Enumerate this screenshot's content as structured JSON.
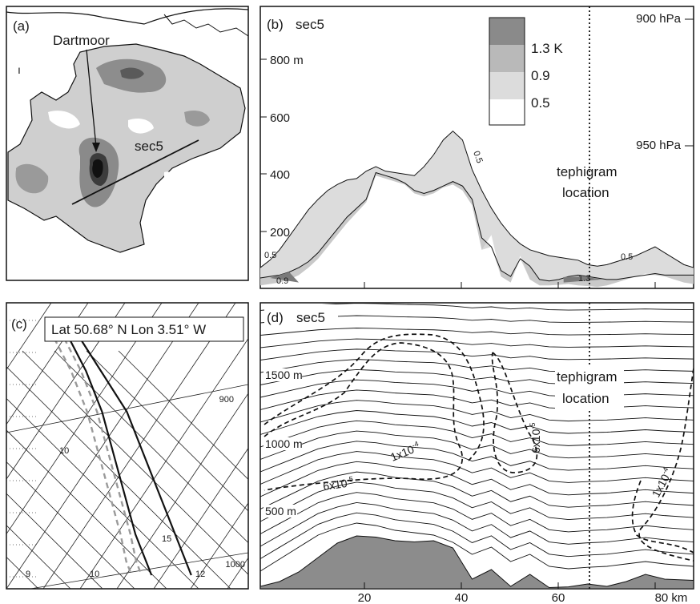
{
  "panel_a": {
    "label": "(a)",
    "place_label": "Dartmoor",
    "section_label": "sec5",
    "shade_color": "#c8c8c8",
    "dark_color": "#6e6e6e",
    "core_color": "#222222"
  },
  "panel_b": {
    "label": "(b)",
    "title": "sec5",
    "pressure_labels": [
      "900 hPa",
      "950 hPa"
    ],
    "legend": {
      "entries": [
        "1.3  K",
        "0.9",
        "0.5"
      ],
      "colors": [
        "#8a8a8a",
        "#b9b9b9",
        "#dcdcdc",
        "#ffffff"
      ]
    },
    "annotation": [
      "tephigram",
      "location"
    ],
    "contour_labels": [
      "0.5",
      "0.5",
      "0.5",
      "0.9",
      "1.3"
    ]
  },
  "panel_c": {
    "label": "(c)",
    "title": "Lat 50.68° N   Lon  3.51° W",
    "pressure_ticks": [
      "900",
      "1000"
    ],
    "temp_labels": [
      "10",
      "15",
      "9",
      "10",
      "12"
    ]
  },
  "panel_d": {
    "label": "(d)",
    "title": "sec5",
    "height_labels": [
      "1500 m",
      "1000 m",
      "500 m"
    ],
    "annotation": [
      "tephigram",
      "location"
    ],
    "contour_labels": [
      "1x10",
      "6x10",
      "6x10",
      "1x10"
    ],
    "terrain_color": "#8c8c8c"
  },
  "chart_data": [
    {
      "panel": "b",
      "type": "area",
      "title": "sec5",
      "ylabel_ticks": [
        "200",
        "400",
        "600",
        "800 m"
      ],
      "ylim": [
        0,
        950
      ],
      "xlim": [
        0,
        90
      ],
      "units_x": "km",
      "units_y": "m",
      "dashed_vertical_x": 64,
      "x": [
        0,
        2,
        4,
        6,
        8,
        10,
        12,
        14,
        16,
        18,
        20,
        22,
        24,
        26,
        28,
        30,
        32,
        34,
        36,
        38,
        40,
        42,
        44,
        46,
        48,
        50,
        52,
        54,
        56,
        58,
        60,
        62,
        64,
        66,
        68,
        70,
        72,
        74,
        76,
        78,
        80,
        82,
        84,
        86,
        88,
        90
      ],
      "series": [
        {
          "name": "0.5",
          "values": [
            70,
            95,
            130,
            175,
            220,
            265,
            300,
            330,
            350,
            365,
            370,
            395,
            410,
            395,
            390,
            385,
            380,
            410,
            450,
            500,
            530,
            500,
            400,
            330,
            270,
            220,
            180,
            150,
            130,
            120,
            110,
            105,
            100,
            95,
            80,
            75,
            80,
            90,
            100,
            110,
            125,
            140,
            120,
            100,
            80,
            70
          ]
        },
        {
          "name": "0.9",
          "values": [
            35,
            40,
            45,
            55,
            70,
            90,
            120,
            160,
            200,
            240,
            270,
            300,
            390,
            380,
            370,
            355,
            330,
            320,
            330,
            345,
            360,
            345,
            300,
            170,
            140,
            60,
            40,
            100,
            75,
            30,
            25,
            30,
            40,
            45,
            40,
            35,
            30,
            30,
            35,
            40,
            45,
            50,
            45,
            45,
            45,
            45
          ]
        }
      ],
      "terrain": [
        10,
        15,
        20,
        30,
        45,
        70,
        100,
        140,
        180,
        220,
        255,
        290,
        380,
        370,
        360,
        350,
        320,
        310,
        320,
        340,
        350,
        330,
        280,
        130,
        180,
        40,
        20,
        110,
        30,
        10,
        10,
        12,
        15,
        10,
        8,
        5,
        10,
        20,
        30,
        40,
        50,
        45,
        40,
        30,
        20,
        15
      ]
    },
    {
      "panel": "c",
      "type": "line",
      "title": "Lat 50.68° N   Lon  3.51° W",
      "pressure_ticks": [
        900,
        1000
      ],
      "series": [
        {
          "name": "temperature",
          "values": [
            [
              -8,
              820
            ],
            [
              -3,
              850
            ],
            [
              2,
              880
            ],
            [
              5,
              910
            ],
            [
              8,
              940
            ],
            [
              11,
              970
            ],
            [
              13,
              990
            ],
            [
              14,
              1000
            ]
          ]
        },
        {
          "name": "temperature-2",
          "values": [
            [
              -10,
              820
            ],
            [
              -6,
              850
            ],
            [
              -3,
              880
            ],
            [
              -1,
              910
            ],
            [
              1,
              940
            ],
            [
              3,
              970
            ],
            [
              5,
              990
            ],
            [
              6,
              1000
            ]
          ]
        },
        {
          "name": "dewpoint",
          "values": [
            [
              -11,
              820
            ],
            [
              -7,
              850
            ],
            [
              -4,
              880
            ],
            [
              -2,
              910
            ],
            [
              0,
              940
            ],
            [
              2,
              970
            ],
            [
              3,
              990
            ],
            [
              4,
              1000
            ]
          ]
        },
        {
          "name": "dewpoint-2",
          "values": [
            [
              -13,
              820
            ],
            [
              -9,
              850
            ],
            [
              -6,
              880
            ],
            [
              -4,
              910
            ],
            [
              -2,
              940
            ],
            [
              0,
              970
            ],
            [
              1,
              990
            ],
            [
              2,
              1000
            ]
          ]
        }
      ]
    },
    {
      "panel": "d",
      "type": "line",
      "title": "sec5",
      "x_ticks": [
        "20",
        "40",
        "60",
        "80 km"
      ],
      "xlim": [
        0,
        90
      ],
      "height_ticks": [
        "500 m",
        "1000 m",
        "1500 m"
      ],
      "dashed_vertical_x": 64,
      "isentrope_count": 22,
      "x": [
        0,
        4,
        8,
        12,
        16,
        20,
        24,
        28,
        32,
        36,
        40,
        44,
        48,
        52,
        56,
        60,
        64,
        68,
        72,
        76,
        80,
        84,
        90
      ],
      "terrain": [
        10,
        30,
        70,
        130,
        190,
        220,
        215,
        200,
        195,
        200,
        170,
        40,
        80,
        10,
        60,
        5,
        8,
        20,
        10,
        30,
        60,
        40,
        35
      ],
      "isentrope_bump": [
        0,
        0.25,
        0.5,
        0.75,
        0.9,
        1.0,
        0.95,
        0.85,
        0.8,
        0.75,
        0.6,
        0.35,
        0.5,
        0.2,
        0.35,
        0.1,
        0.05,
        0.08,
        0.1,
        0.15,
        0.2,
        0.15,
        0.1
      ]
    }
  ]
}
